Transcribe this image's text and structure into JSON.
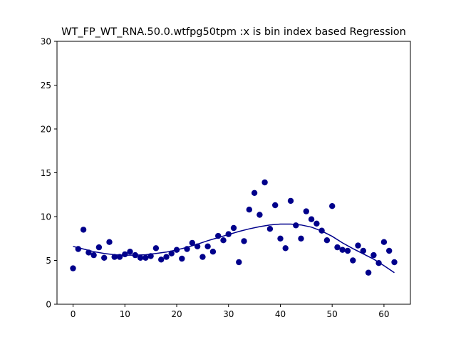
{
  "chart_data": {
    "type": "scatter",
    "title": "WT_FP_WT_RNA.50.0.wtfpg50tpm :x is bin index based Regression",
    "xlabel": "",
    "ylabel": "",
    "xlim": [
      -3.1,
      65.1
    ],
    "ylim": [
      0,
      30
    ],
    "xticks": [
      0,
      10,
      20,
      30,
      40,
      50,
      60
    ],
    "yticks": [
      0,
      5,
      10,
      15,
      20,
      25,
      30
    ],
    "grid": false,
    "legend": "none",
    "colors": {
      "points": "#00008b",
      "fit": "#00008b"
    },
    "series": [
      {
        "kind": "scatter",
        "x": [
          0,
          1,
          2,
          3,
          4,
          5,
          6,
          7,
          8,
          9,
          10,
          11,
          12,
          13,
          14,
          15,
          16,
          17,
          18,
          19,
          20,
          21,
          22,
          23,
          24,
          25,
          26,
          27,
          28,
          29,
          30,
          31,
          32,
          33,
          34,
          35,
          36,
          37,
          38,
          39,
          40,
          41,
          42,
          43,
          44,
          45,
          46,
          47,
          48,
          49,
          50,
          51,
          52,
          53,
          54,
          55,
          56,
          57,
          58,
          59,
          60,
          61,
          62
        ],
        "y": [
          4.1,
          6.3,
          8.5,
          5.9,
          5.6,
          6.5,
          5.3,
          7.1,
          5.4,
          5.4,
          5.7,
          6.0,
          5.6,
          5.3,
          5.3,
          5.5,
          6.4,
          5.1,
          5.4,
          5.8,
          6.2,
          5.2,
          6.3,
          7.0,
          6.6,
          5.4,
          6.6,
          6.0,
          7.8,
          7.3,
          8.0,
          8.7,
          4.8,
          7.2,
          10.8,
          12.7,
          10.2,
          13.9,
          8.6,
          11.3,
          7.5,
          6.4,
          11.8,
          9.0,
          7.5,
          10.6,
          9.7,
          9.2,
          8.4,
          7.3,
          11.2,
          6.5,
          6.2,
          6.1,
          5.0,
          6.7,
          6.1,
          3.6,
          5.6,
          4.7,
          7.1,
          6.1,
          4.8
        ]
      },
      {
        "kind": "line",
        "x": [
          0,
          2,
          4,
          6,
          8,
          10,
          12,
          14,
          16,
          18,
          20,
          22,
          24,
          26,
          28,
          30,
          32,
          34,
          36,
          38,
          40,
          42,
          44,
          46,
          48,
          50,
          52,
          54,
          56,
          58,
          60,
          62
        ],
        "y": [
          6.6,
          6.3,
          6.0,
          5.8,
          5.65,
          5.6,
          5.6,
          5.65,
          5.8,
          5.95,
          6.2,
          6.5,
          6.85,
          7.25,
          7.6,
          7.95,
          8.3,
          8.6,
          8.85,
          9.05,
          9.15,
          9.15,
          9.05,
          8.8,
          8.35,
          7.75,
          7.0,
          6.35,
          5.75,
          5.15,
          4.4,
          3.6
        ]
      }
    ]
  }
}
